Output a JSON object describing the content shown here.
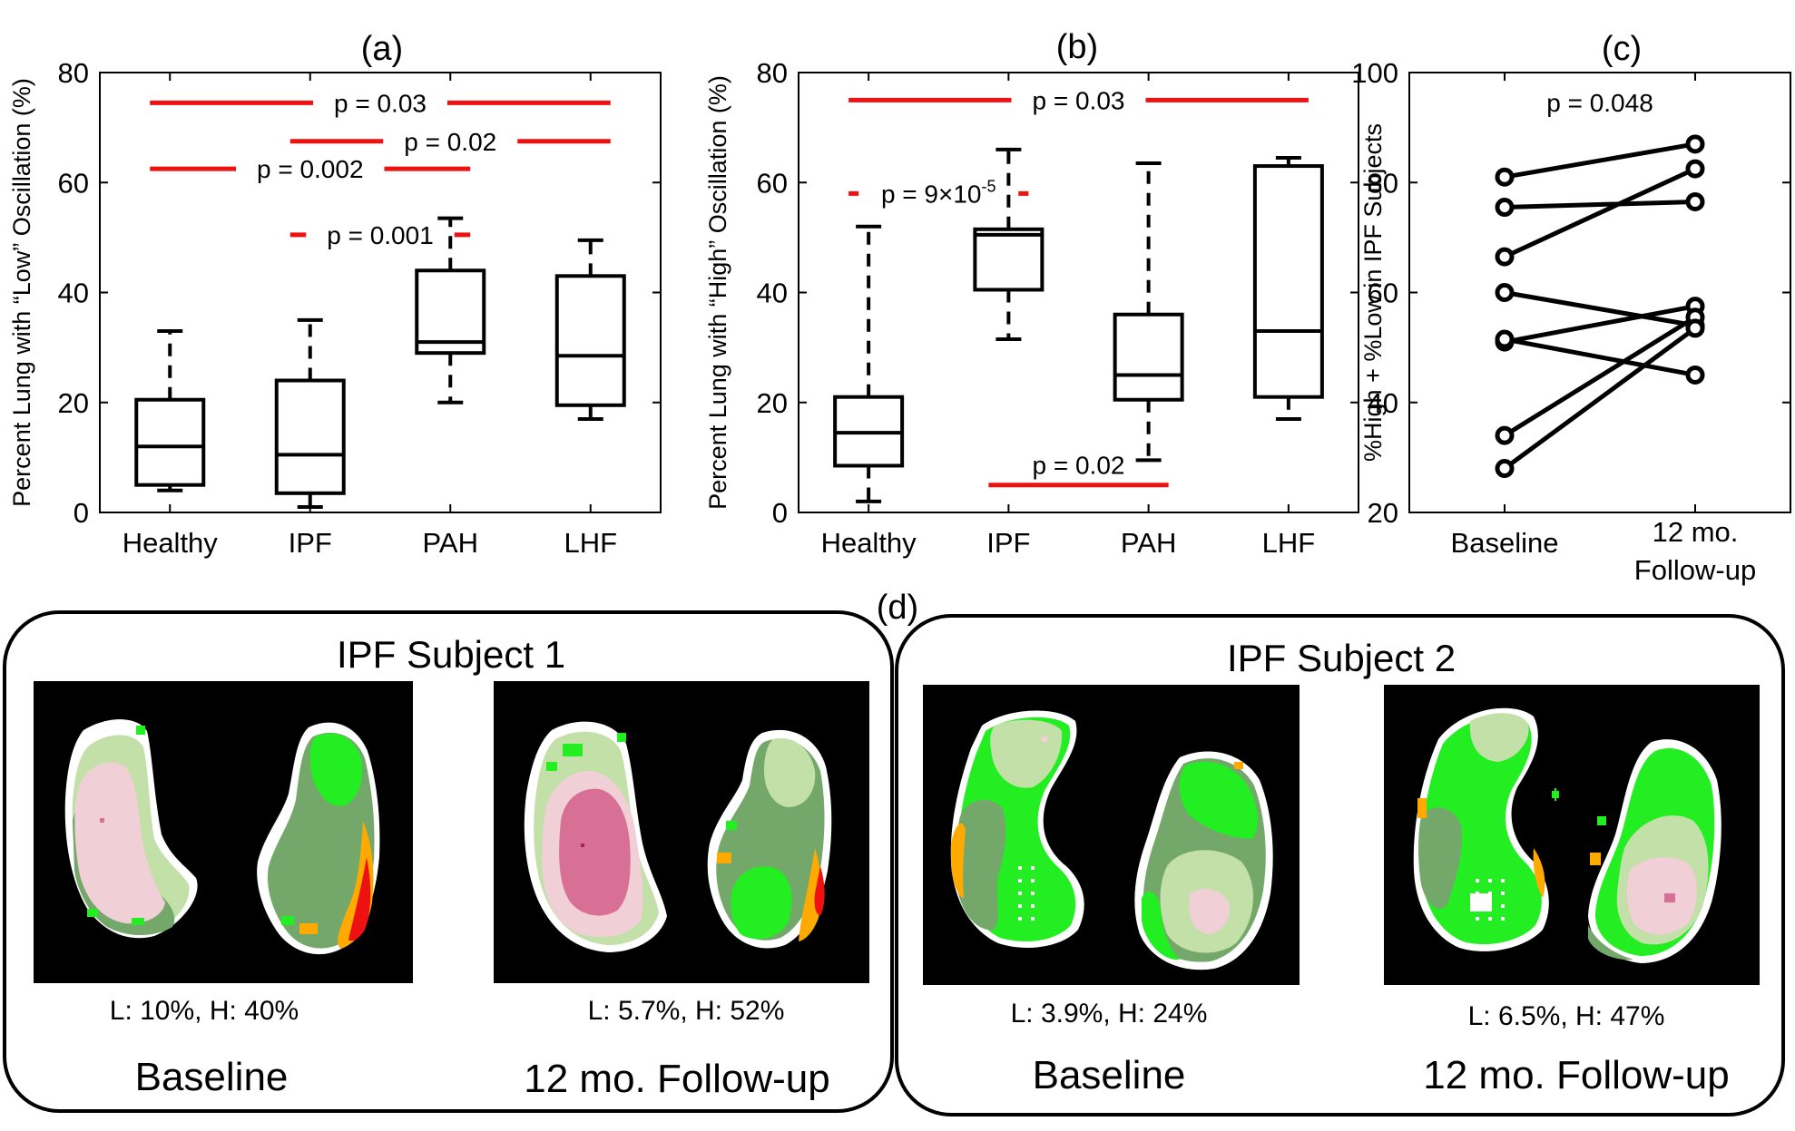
{
  "figure_label_d": "(d)",
  "chart_data": [
    {
      "type": "box",
      "panel_label": "(a)",
      "ylabel": "Percent Lung with “Low” Oscillation (%)",
      "ylim": [
        0,
        80
      ],
      "yticks": [
        "0",
        "20",
        "40",
        "60",
        "80"
      ],
      "categories": [
        "Healthy",
        "IPF",
        "PAH",
        "LHF"
      ],
      "boxes": [
        {
          "min": 4,
          "q1": 5,
          "median": 12,
          "q3": 20.5,
          "max": 33
        },
        {
          "min": 1,
          "q1": 3.5,
          "median": 10.5,
          "q3": 24,
          "max": 35
        },
        {
          "min": 20,
          "q1": 29,
          "median": 31,
          "q3": 44,
          "max": 53.5
        },
        {
          "min": 17,
          "q1": 19.5,
          "median": 28.5,
          "q3": 43,
          "max": 49.5
        }
      ],
      "significance": [
        {
          "from": 0,
          "to": 3,
          "y": 74.5,
          "label": "p = 0.03"
        },
        {
          "from": 1,
          "to": 3,
          "y": 67.5,
          "label": "p = 0.02"
        },
        {
          "from": 0,
          "to": 2,
          "y": 62.5,
          "label": "p = 0.002"
        },
        {
          "from": 1,
          "to": 2,
          "y": 50.5,
          "label": "p = 0.001"
        }
      ]
    },
    {
      "type": "box",
      "panel_label": "(b)",
      "ylabel": "Percent Lung with “High” Oscillation (%)",
      "ylim": [
        0,
        80
      ],
      "yticks": [
        "0",
        "20",
        "40",
        "60",
        "80"
      ],
      "categories": [
        "Healthy",
        "IPF",
        "PAH",
        "LHF"
      ],
      "boxes": [
        {
          "min": 2,
          "q1": 8.5,
          "median": 14.5,
          "q3": 21,
          "max": 52
        },
        {
          "min": 31.5,
          "q1": 40.5,
          "median": 50.5,
          "q3": 51.5,
          "max": 66
        },
        {
          "min": 9.5,
          "q1": 20.5,
          "median": 25,
          "q3": 36,
          "max": 63.5
        },
        {
          "min": 17,
          "q1": 21,
          "median": 33,
          "q3": 63,
          "max": 64.5
        }
      ],
      "significance": [
        {
          "from": 0,
          "to": 3,
          "y": 75,
          "label": "p = 0.03"
        },
        {
          "from": 0,
          "to": 1,
          "y": 58,
          "label": "p = 9×10",
          "label_sup": "-5"
        },
        {
          "from": 1,
          "to": 2,
          "y": 5,
          "label": "p = 0.02",
          "label_position": "above"
        }
      ]
    },
    {
      "type": "paired_line",
      "panel_label": "(c)",
      "ylabel": "%High + %Low in IPF Subjects",
      "ylim": [
        20,
        100
      ],
      "yticks": [
        "20",
        "40",
        "60",
        "80",
        "100"
      ],
      "categories": [
        "Baseline",
        "12 mo.",
        "Follow-up"
      ],
      "p_label": "p = 0.048",
      "series": [
        {
          "baseline": 81,
          "followup": 87
        },
        {
          "baseline": 75.5,
          "followup": 76.5
        },
        {
          "baseline": 66.5,
          "followup": 82.5
        },
        {
          "baseline": 60,
          "followup": 54
        },
        {
          "baseline": 51,
          "followup": 57.5
        },
        {
          "baseline": 51.5,
          "followup": 45
        },
        {
          "baseline": 34,
          "followup": 55.5
        },
        {
          "baseline": 28,
          "followup": 53.5
        }
      ]
    }
  ],
  "subjects": [
    {
      "title": "IPF Subject 1",
      "scans": [
        {
          "stats": "L: 10%, H: 40%",
          "label": "Baseline"
        },
        {
          "stats": "L: 5.7%, H: 52%",
          "label": "12 mo. Follow-up"
        }
      ]
    },
    {
      "title": "IPF Subject 2",
      "scans": [
        {
          "stats": "L: 3.9%, H: 24%",
          "label": "Baseline"
        },
        {
          "stats": "L: 6.5%, H: 47%",
          "label": "12 mo. Follow-up"
        }
      ]
    }
  ],
  "colors": {
    "significance": "#ee1111",
    "scan_background": "#000000",
    "pale_pink": "#f0cfd6",
    "dark_pink": "#d86f94",
    "light_green": "#c2e0a8",
    "sage": "#74a86a",
    "bright_green": "#22ee22",
    "orange": "#ffaa00",
    "red": "#ee1111",
    "white": "#ffffff"
  }
}
